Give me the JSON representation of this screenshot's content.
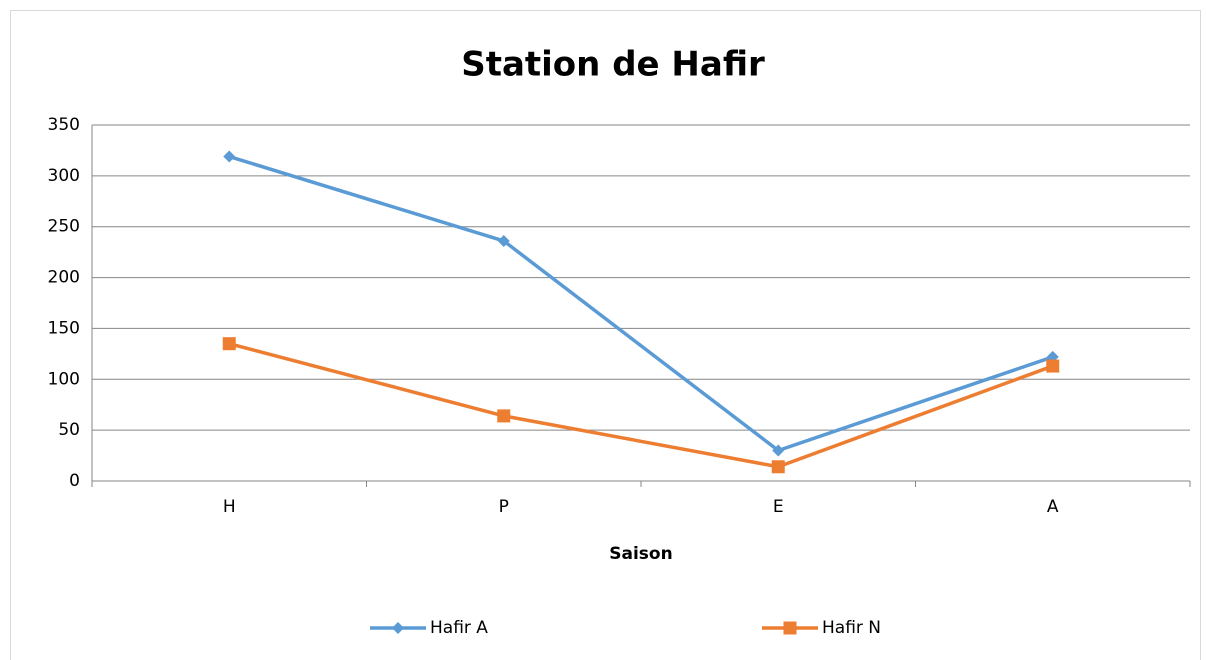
{
  "chart_data": {
    "type": "line",
    "title": "Station de Hafir",
    "x_label": "Saison",
    "categories": [
      "H",
      "P",
      "E",
      "A"
    ],
    "series": [
      {
        "name": "Hafir A",
        "color": "#5b9bd5",
        "marker": "diamond",
        "values": [
          319,
          236,
          30,
          122
        ]
      },
      {
        "name": "Hafir N",
        "color": "#ed7d31",
        "marker": "square",
        "values": [
          135,
          64,
          14,
          113
        ]
      }
    ],
    "ylim": [
      0,
      350
    ],
    "yticks": [
      0,
      50,
      100,
      150,
      200,
      250,
      300,
      350
    ],
    "grid": true,
    "legend": "bottom"
  }
}
